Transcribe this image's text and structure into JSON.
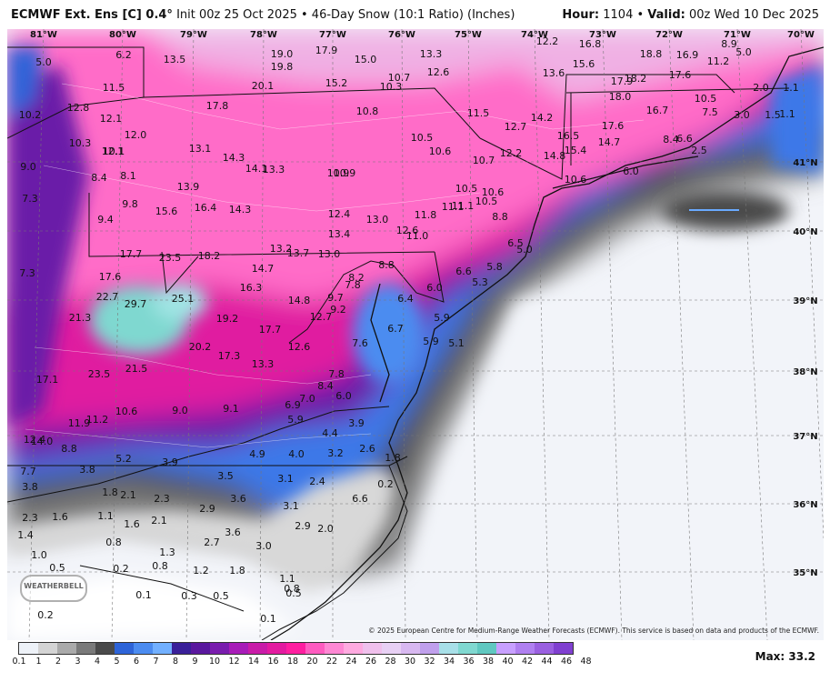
{
  "header": {
    "model": "ECMWF Ext. Ens [C] 0.4°",
    "init": "Init 00z 25 Oct 2025",
    "product": "46-Day Snow (10:1 Ratio) (Inches)",
    "hour_label": "Hour:",
    "hour": "1104",
    "valid_label": "Valid:",
    "valid": "00z Wed 10 Dec 2025"
  },
  "logo": "WEATHERBELL",
  "copyright": "© 2025 European Centre for Medium-Range Weather Forecasts (ECMWF). This service is based on data and products of the ECMWF.",
  "max_label": "Max: 33.2",
  "colorbar": {
    "labels": [
      "0.1",
      "1",
      "2",
      "3",
      "4",
      "5",
      "6",
      "7",
      "8",
      "9",
      "10",
      "12",
      "14",
      "16",
      "18",
      "20",
      "22",
      "24",
      "26",
      "28",
      "30",
      "32",
      "34",
      "36",
      "38",
      "40",
      "42",
      "44",
      "46",
      "48"
    ],
    "colors": [
      "#eef2f8",
      "#d4d4d4",
      "#aaaaaa",
      "#7a7a7a",
      "#4a4a4a",
      "#2e64d8",
      "#4c8cf0",
      "#72b0ff",
      "#3a2099",
      "#5a189e",
      "#7a1dae",
      "#a81cb8",
      "#c91ca8",
      "#e31ba0",
      "#ff1fa0",
      "#ff5cc0",
      "#ff88d4",
      "#ffaae0",
      "#f0c0ec",
      "#e8d0f4",
      "#d8b8f0",
      "#c0a0ec",
      "#a8e0e8",
      "#80d8d0",
      "#60c8c0",
      "#c8a0ff",
      "#b080f0",
      "#9a60e0",
      "#8040d0"
    ]
  },
  "lon_labels": [
    "81°W",
    "80°W",
    "79°W",
    "78°W",
    "77°W",
    "76°W",
    "75°W",
    "74°W",
    "73°W",
    "72°W",
    "71°W",
    "70°W"
  ],
  "lat_labels": [
    "41°N",
    "40°N",
    "39°N",
    "38°N",
    "37°N",
    "36°N",
    "35°N"
  ],
  "values": [
    "5.0",
    "6.2",
    "13.5",
    "19.0",
    "19.8",
    "17.9",
    "15.0",
    "13.3",
    "12.2",
    "16.8",
    "18.8",
    "16.9",
    "8.9",
    "5.0",
    "11.5",
    "20.1",
    "15.2",
    "10.7",
    "10.3",
    "12.6",
    "13.6",
    "15.6",
    "17.9",
    "18.2",
    "17.6",
    "11.2",
    "2.0",
    "1.1",
    "10.2",
    "12.8",
    "12.1",
    "17.8",
    "10.8",
    "11.5",
    "14.2",
    "18.0",
    "16.7",
    "10.5",
    "7.5",
    "3.0",
    "1.5",
    "1.1",
    "10.3",
    "12.0",
    "12.1",
    "10.5",
    "12.7",
    "16.5",
    "17.6",
    "14.7",
    "8.4",
    "6.6",
    "2.5",
    "9.0",
    "10.1",
    "13.1",
    "14.3",
    "14.1",
    "13.3",
    "10.6",
    "10.7",
    "12.2",
    "14.8",
    "15.4",
    "6.0",
    "10.6",
    "8.4",
    "8.1",
    "13.9",
    "10.9",
    "10.9",
    "10.5",
    "10.6",
    "10.5",
    "11.1",
    "11.8",
    "7.3",
    "9.8",
    "15.6",
    "16.4",
    "14.3",
    "12.4",
    "13.0",
    "11.1",
    "8.8",
    "9.4",
    "13.4",
    "12.6",
    "11.0",
    "6.5",
    "5.0",
    "17.7",
    "23.5",
    "18.2",
    "13.2",
    "13.7",
    "13.0",
    "8.8",
    "6.6",
    "5.8",
    "7.3",
    "17.6",
    "14.7",
    "16.3",
    "8.2",
    "7.8",
    "6.0",
    "5.3",
    "22.7",
    "29.7",
    "25.1",
    "14.8",
    "9.7",
    "9.2",
    "6.4",
    "21.3",
    "19.2",
    "17.7",
    "12.7",
    "6.7",
    "5.9",
    "20.2",
    "12.6",
    "7.6",
    "5.9",
    "5.1",
    "17.3",
    "13.3",
    "21.5",
    "23.5",
    "17.1",
    "7.8",
    "8.4",
    "7.0",
    "6.0",
    "6.9",
    "5.9",
    "3.9",
    "10.6",
    "9.0",
    "9.1",
    "11.9",
    "11.2",
    "14.0",
    "4.4",
    "12.4",
    "8.8",
    "5.2",
    "4.9",
    "4.0",
    "3.2",
    "2.6",
    "1.8",
    "7.7",
    "3.8",
    "3.9",
    "3.5",
    "3.1",
    "2.4",
    "3.8",
    "1.8",
    "2.1",
    "2.3",
    "3.6",
    "3.1",
    "6.6",
    "0.2",
    "2.3",
    "1.6",
    "1.1",
    "1.6",
    "2.1",
    "2.9",
    "1.4",
    "3.6",
    "2.9",
    "2.0",
    "0.8",
    "1.3",
    "2.7",
    "3.0",
    "1.0",
    "0.5",
    "0.2",
    "0.8",
    "1.2",
    "1.8",
    "1.1",
    "0.8",
    "0.1",
    "0.3",
    "0.5",
    "0.5",
    "0.2",
    "0.1"
  ]
}
